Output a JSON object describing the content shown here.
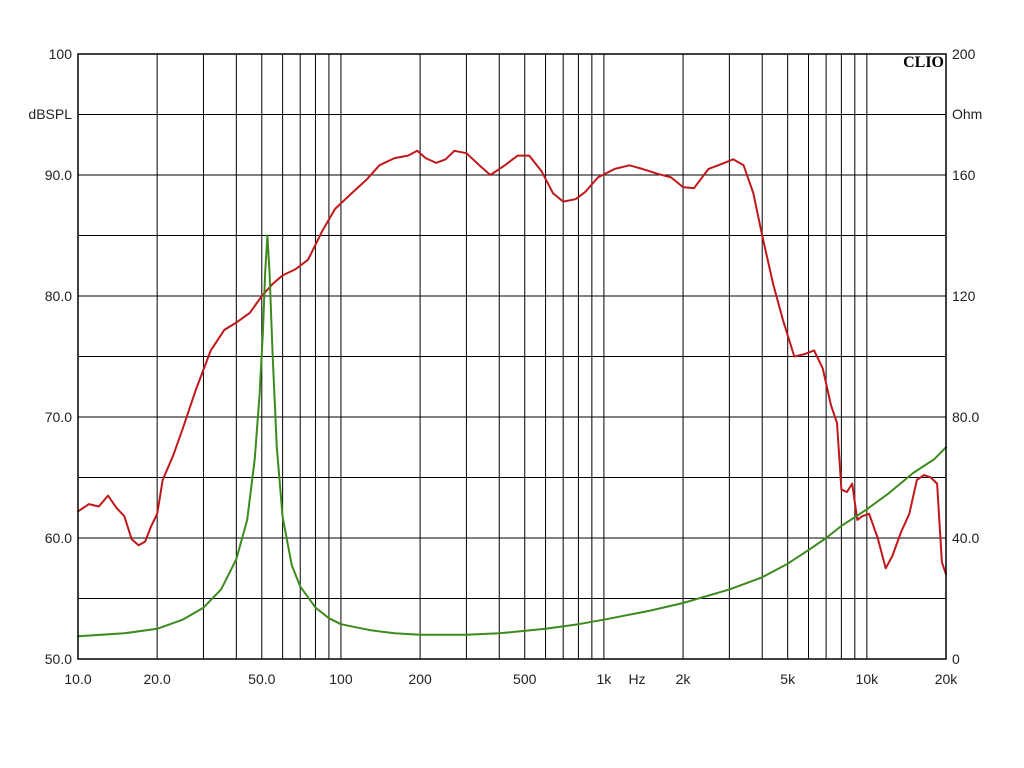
{
  "chart_data": {
    "type": "line",
    "brand": "CLIO",
    "xlabel": "Hz",
    "ylabel_left": "dBSPL",
    "ylabel_right": "Ohm",
    "x_scale": "log",
    "xlim": [
      10,
      20000
    ],
    "ylim_left": [
      50,
      100
    ],
    "ylim_right": [
      0,
      200
    ],
    "grid": true,
    "x_ticks": [
      {
        "value": 10,
        "label": "10.0"
      },
      {
        "value": 20,
        "label": "20.0"
      },
      {
        "value": 50,
        "label": "50.0"
      },
      {
        "value": 100,
        "label": "100"
      },
      {
        "value": 200,
        "label": "200"
      },
      {
        "value": 500,
        "label": "500"
      },
      {
        "value": 1000,
        "label": "1k"
      },
      {
        "value": 2000,
        "label": "2k"
      },
      {
        "value": 5000,
        "label": "5k"
      },
      {
        "value": 10000,
        "label": "10k"
      },
      {
        "value": 20000,
        "label": "20k"
      }
    ],
    "y_ticks_left": [
      {
        "value": 100,
        "label": "100"
      },
      {
        "value": 90,
        "label": "90.0"
      },
      {
        "value": 80,
        "label": "80.0"
      },
      {
        "value": 70,
        "label": "70.0"
      },
      {
        "value": 60,
        "label": "60.0"
      },
      {
        "value": 50,
        "label": "50.0"
      }
    ],
    "y_ticks_right": [
      {
        "value": 200,
        "label": "200"
      },
      {
        "value": 160,
        "label": "160"
      },
      {
        "value": 120,
        "label": "120"
      },
      {
        "value": 80,
        "label": "80.0"
      },
      {
        "value": 40,
        "label": "40.0"
      },
      {
        "value": 0,
        "label": "0"
      }
    ],
    "series": [
      {
        "axis": "left",
        "color": "#c0181a",
        "points": [
          [
            10,
            62.2
          ],
          [
            11,
            62.8
          ],
          [
            12,
            62.6
          ],
          [
            13,
            63.5
          ],
          [
            14,
            62.5
          ],
          [
            15,
            61.8
          ],
          [
            16,
            59.9
          ],
          [
            17,
            59.4
          ],
          [
            18,
            59.7
          ],
          [
            19,
            61.0
          ],
          [
            20,
            62.0
          ],
          [
            21,
            64.8
          ],
          [
            23,
            66.8
          ],
          [
            25,
            69.0
          ],
          [
            28,
            72.2
          ],
          [
            32,
            75.5
          ],
          [
            36,
            77.2
          ],
          [
            40,
            77.8
          ],
          [
            45,
            78.6
          ],
          [
            50,
            80.0
          ],
          [
            55,
            81.0
          ],
          [
            60,
            81.7
          ],
          [
            67,
            82.2
          ],
          [
            75,
            83.0
          ],
          [
            85,
            85.4
          ],
          [
            95,
            87.2
          ],
          [
            110,
            88.5
          ],
          [
            125,
            89.6
          ],
          [
            140,
            90.8
          ],
          [
            160,
            91.4
          ],
          [
            180,
            91.6
          ],
          [
            195,
            92.0
          ],
          [
            210,
            91.4
          ],
          [
            230,
            91.0
          ],
          [
            250,
            91.3
          ],
          [
            270,
            92.0
          ],
          [
            300,
            91.8
          ],
          [
            340,
            90.7
          ],
          [
            370,
            90.0
          ],
          [
            420,
            90.8
          ],
          [
            470,
            91.6
          ],
          [
            520,
            91.6
          ],
          [
            580,
            90.3
          ],
          [
            640,
            88.5
          ],
          [
            700,
            87.8
          ],
          [
            780,
            88.0
          ],
          [
            850,
            88.6
          ],
          [
            950,
            89.8
          ],
          [
            1100,
            90.5
          ],
          [
            1250,
            90.8
          ],
          [
            1400,
            90.5
          ],
          [
            1600,
            90.1
          ],
          [
            1800,
            89.8
          ],
          [
            2000,
            89.0
          ],
          [
            2200,
            88.9
          ],
          [
            2500,
            90.5
          ],
          [
            2800,
            90.9
          ],
          [
            3100,
            91.3
          ],
          [
            3400,
            90.8
          ],
          [
            3700,
            88.5
          ],
          [
            4000,
            85.0
          ],
          [
            4400,
            81.0
          ],
          [
            4800,
            78.0
          ],
          [
            5300,
            75.0
          ],
          [
            5800,
            75.2
          ],
          [
            6300,
            75.5
          ],
          [
            6800,
            74.0
          ],
          [
            7300,
            71.0
          ],
          [
            7700,
            69.5
          ],
          [
            8000,
            64.0
          ],
          [
            8400,
            63.8
          ],
          [
            8800,
            64.5
          ],
          [
            9200,
            61.5
          ],
          [
            9600,
            61.8
          ],
          [
            10200,
            62.0
          ],
          [
            11000,
            60.0
          ],
          [
            11800,
            57.5
          ],
          [
            12500,
            58.5
          ],
          [
            13500,
            60.5
          ],
          [
            14500,
            62.0
          ],
          [
            15500,
            64.8
          ],
          [
            16500,
            65.2
          ],
          [
            17500,
            65.0
          ],
          [
            18500,
            64.5
          ],
          [
            19300,
            58.0
          ],
          [
            20000,
            57.0
          ]
        ]
      },
      {
        "axis": "right",
        "color": "#3d8a1e",
        "points": [
          [
            10,
            7.5
          ],
          [
            15,
            8.5
          ],
          [
            20,
            10.0
          ],
          [
            25,
            13.0
          ],
          [
            30,
            17.0
          ],
          [
            35,
            23.0
          ],
          [
            40,
            33.0
          ],
          [
            44,
            46.0
          ],
          [
            47,
            66.0
          ],
          [
            49,
            87.0
          ],
          [
            50.5,
            108.0
          ],
          [
            51.5,
            128.0
          ],
          [
            52.5,
            140.0
          ],
          [
            53.5,
            128.0
          ],
          [
            55,
            100.0
          ],
          [
            57,
            70.0
          ],
          [
            60,
            47.0
          ],
          [
            65,
            31.0
          ],
          [
            70,
            24.0
          ],
          [
            80,
            17.0
          ],
          [
            90,
            13.5
          ],
          [
            100,
            11.5
          ],
          [
            130,
            9.5
          ],
          [
            160,
            8.5
          ],
          [
            200,
            8.0
          ],
          [
            300,
            8.0
          ],
          [
            400,
            8.5
          ],
          [
            600,
            10.0
          ],
          [
            800,
            11.5
          ],
          [
            1000,
            13.0
          ],
          [
            1500,
            16.0
          ],
          [
            2000,
            18.5
          ],
          [
            3000,
            23.0
          ],
          [
            4000,
            27.0
          ],
          [
            5000,
            31.5
          ],
          [
            6000,
            36.0
          ],
          [
            7000,
            40.0
          ],
          [
            8000,
            44.0
          ],
          [
            10000,
            49.5
          ],
          [
            12000,
            54.5
          ],
          [
            15000,
            61.5
          ],
          [
            18000,
            66.0
          ],
          [
            20000,
            70.0
          ]
        ]
      }
    ]
  }
}
